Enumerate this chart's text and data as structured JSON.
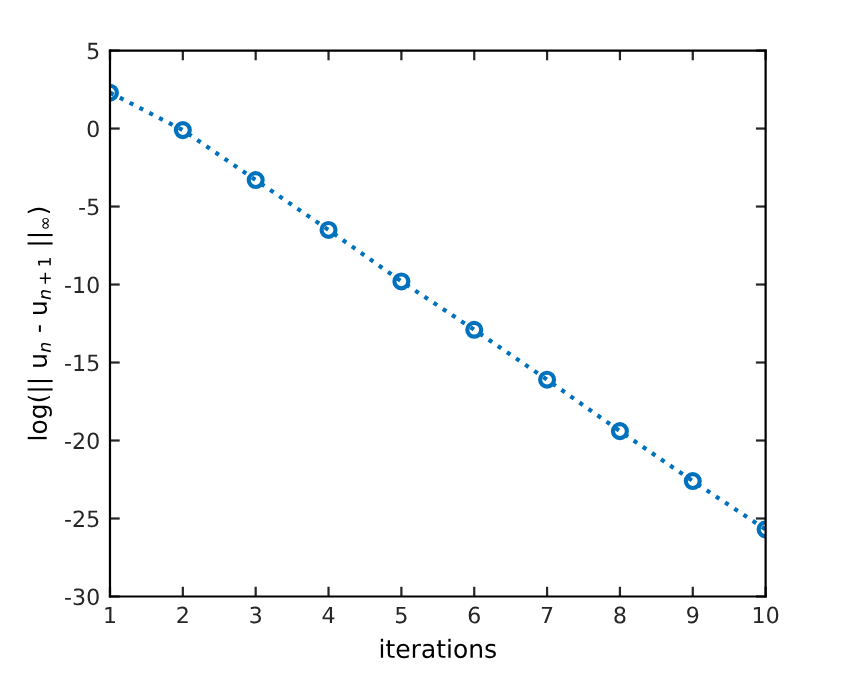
{
  "chart_data": {
    "type": "line",
    "xlabel": "iterations",
    "ylabel": "log(|| u$_{n}$ - u$_{n+1}$ ||$_{∞}$)",
    "x": [
      1,
      2,
      3,
      4,
      5,
      6,
      7,
      8,
      9,
      10
    ],
    "series": [
      {
        "color": "#0072bd",
        "values": [
          2.3,
          -0.1,
          -3.3,
          -6.5,
          -9.8,
          -12.9,
          -16.1,
          -19.4,
          -22.6,
          -25.7
        ]
      }
    ],
    "xlim": [
      1,
      10
    ],
    "ylim": [
      -30,
      5
    ],
    "xticks": [
      1,
      2,
      3,
      4,
      5,
      6,
      7,
      8,
      9,
      10
    ],
    "yticks": [
      -30,
      -25,
      -20,
      -15,
      -10,
      -5,
      0,
      5
    ],
    "marker": "circle",
    "line_style": "dotted",
    "grid": false,
    "legend": false
  }
}
